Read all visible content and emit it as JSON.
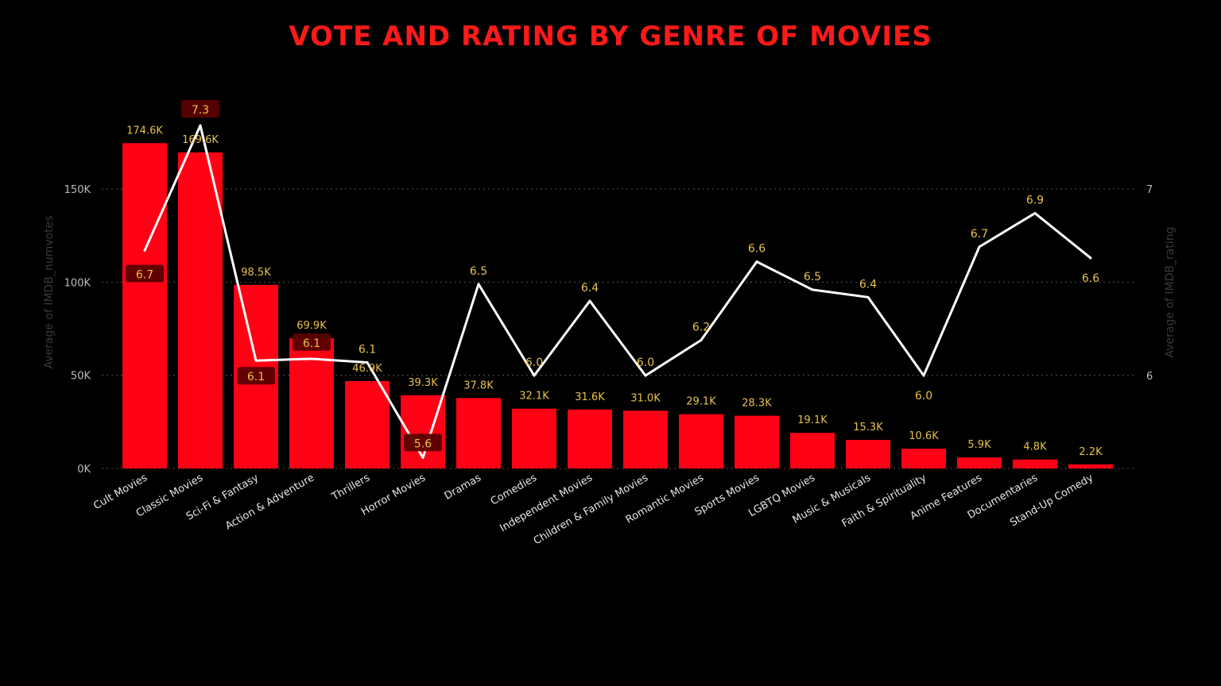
{
  "title": "VOTE AND RATING BY GENRE OF MOVIES",
  "colors": {
    "title": "#ff1a1a",
    "bar": "#ff0015",
    "line": "#ffffff",
    "label": "#e8c14a",
    "label_box": "#5a0000"
  },
  "chart_data": {
    "type": "bar",
    "categories": [
      "Cult Movies",
      "Classic Movies",
      "Sci-Fi & Fantasy",
      "Action & Adventure",
      "Thrillers",
      "Horror Movies",
      "Dramas",
      "Comedies",
      "Independent Movies",
      "Children & Family Movies",
      "Romantic Movies",
      "Sports Movies",
      "LGBTQ Movies",
      "Music & Musicals",
      "Faith & Spirituality",
      "Anime Features",
      "Documentaries",
      "Stand-Up Comedy"
    ],
    "series": [
      {
        "name": "Average of IMDB_numvotes",
        "type": "bar",
        "axis": "left",
        "values": [
          174600,
          169600,
          98500,
          69900,
          46900,
          39300,
          37800,
          32100,
          31600,
          31000,
          29100,
          28300,
          19100,
          15300,
          10600,
          5900,
          4800,
          2200
        ],
        "labels": [
          "174.6K",
          "169.6K",
          "98.5K",
          "69.9K",
          "46.9K",
          "39.3K",
          "37.8K",
          "32.1K",
          "31.6K",
          "31.0K",
          "29.1K",
          "28.3K",
          "19.1K",
          "15.3K",
          "10.6K",
          "5.9K",
          "4.8K",
          "2.2K"
        ]
      },
      {
        "name": "Average of IMDB_rating",
        "type": "line",
        "axis": "right",
        "values": [
          6.67,
          7.34,
          6.08,
          6.09,
          6.07,
          5.56,
          6.49,
          6.0,
          6.4,
          6.0,
          6.19,
          6.61,
          6.46,
          6.42,
          6.0,
          6.69,
          6.87,
          6.63
        ],
        "labels": [
          "6.7",
          "7.3",
          "6.1",
          "6.1",
          "6.1",
          "5.6",
          "6.5",
          "6.0",
          "6.4",
          "6.0",
          "6.2",
          "6.6",
          "6.5",
          "6.4",
          "6.0",
          "6.7",
          "6.9",
          "6.6"
        ]
      }
    ],
    "left_axis": {
      "title": "Average of IMDB_numvotes",
      "ticks": [
        0,
        50000,
        100000,
        150000
      ],
      "tick_labels": [
        "0K",
        "50K",
        "100K",
        "150K"
      ]
    },
    "right_axis": {
      "title": "Average of IMDB_rating",
      "ticks": [
        6,
        7
      ],
      "tick_labels": [
        "6",
        "7"
      ]
    },
    "grid": true,
    "legend": "none"
  }
}
